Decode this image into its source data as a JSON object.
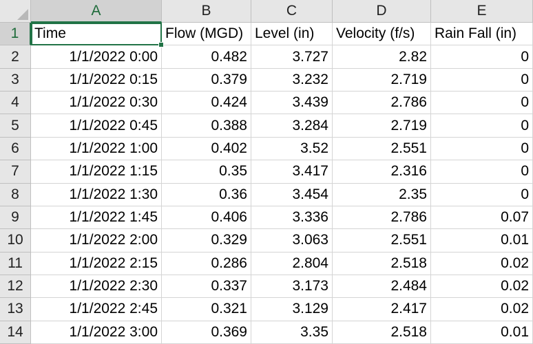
{
  "spreadsheet": {
    "column_headers": [
      "A",
      "B",
      "C",
      "D",
      "E"
    ],
    "selected_column": "A",
    "selected_row": "1",
    "active_cell": "A1",
    "header_row": {
      "row_number": "1",
      "cells": [
        "Time",
        "Flow (MGD)",
        "Level (in)",
        "Velocity (f/s)",
        "Rain Fall (in)"
      ]
    },
    "rows": [
      {
        "row_number": "2",
        "cells": [
          "1/1/2022 0:00",
          "0.482",
          "3.727",
          "2.82",
          "0"
        ]
      },
      {
        "row_number": "3",
        "cells": [
          "1/1/2022 0:15",
          "0.379",
          "3.232",
          "2.719",
          "0"
        ]
      },
      {
        "row_number": "4",
        "cells": [
          "1/1/2022 0:30",
          "0.424",
          "3.439",
          "2.786",
          "0"
        ]
      },
      {
        "row_number": "5",
        "cells": [
          "1/1/2022 0:45",
          "0.388",
          "3.284",
          "2.719",
          "0"
        ]
      },
      {
        "row_number": "6",
        "cells": [
          "1/1/2022 1:00",
          "0.402",
          "3.52",
          "2.551",
          "0"
        ]
      },
      {
        "row_number": "7",
        "cells": [
          "1/1/2022 1:15",
          "0.35",
          "3.417",
          "2.316",
          "0"
        ]
      },
      {
        "row_number": "8",
        "cells": [
          "1/1/2022 1:30",
          "0.36",
          "3.454",
          "2.35",
          "0"
        ]
      },
      {
        "row_number": "9",
        "cells": [
          "1/1/2022 1:45",
          "0.406",
          "3.336",
          "2.786",
          "0.07"
        ]
      },
      {
        "row_number": "10",
        "cells": [
          "1/1/2022 2:00",
          "0.329",
          "3.063",
          "2.551",
          "0.01"
        ]
      },
      {
        "row_number": "11",
        "cells": [
          "1/1/2022 2:15",
          "0.286",
          "2.804",
          "2.518",
          "0.02"
        ]
      },
      {
        "row_number": "12",
        "cells": [
          "1/1/2022 2:30",
          "0.337",
          "3.173",
          "2.484",
          "0.02"
        ]
      },
      {
        "row_number": "13",
        "cells": [
          "1/1/2022 2:45",
          "0.321",
          "3.129",
          "2.417",
          "0.02"
        ]
      },
      {
        "row_number": "14",
        "cells": [
          "1/1/2022 3:00",
          "0.369",
          "3.35",
          "2.518",
          "0.01"
        ]
      }
    ]
  },
  "colors": {
    "selection_accent": "#217346",
    "header_background": "#e6e6e6",
    "selected_header_background": "#d2d2d2",
    "gridline": "#d4d4d4"
  }
}
